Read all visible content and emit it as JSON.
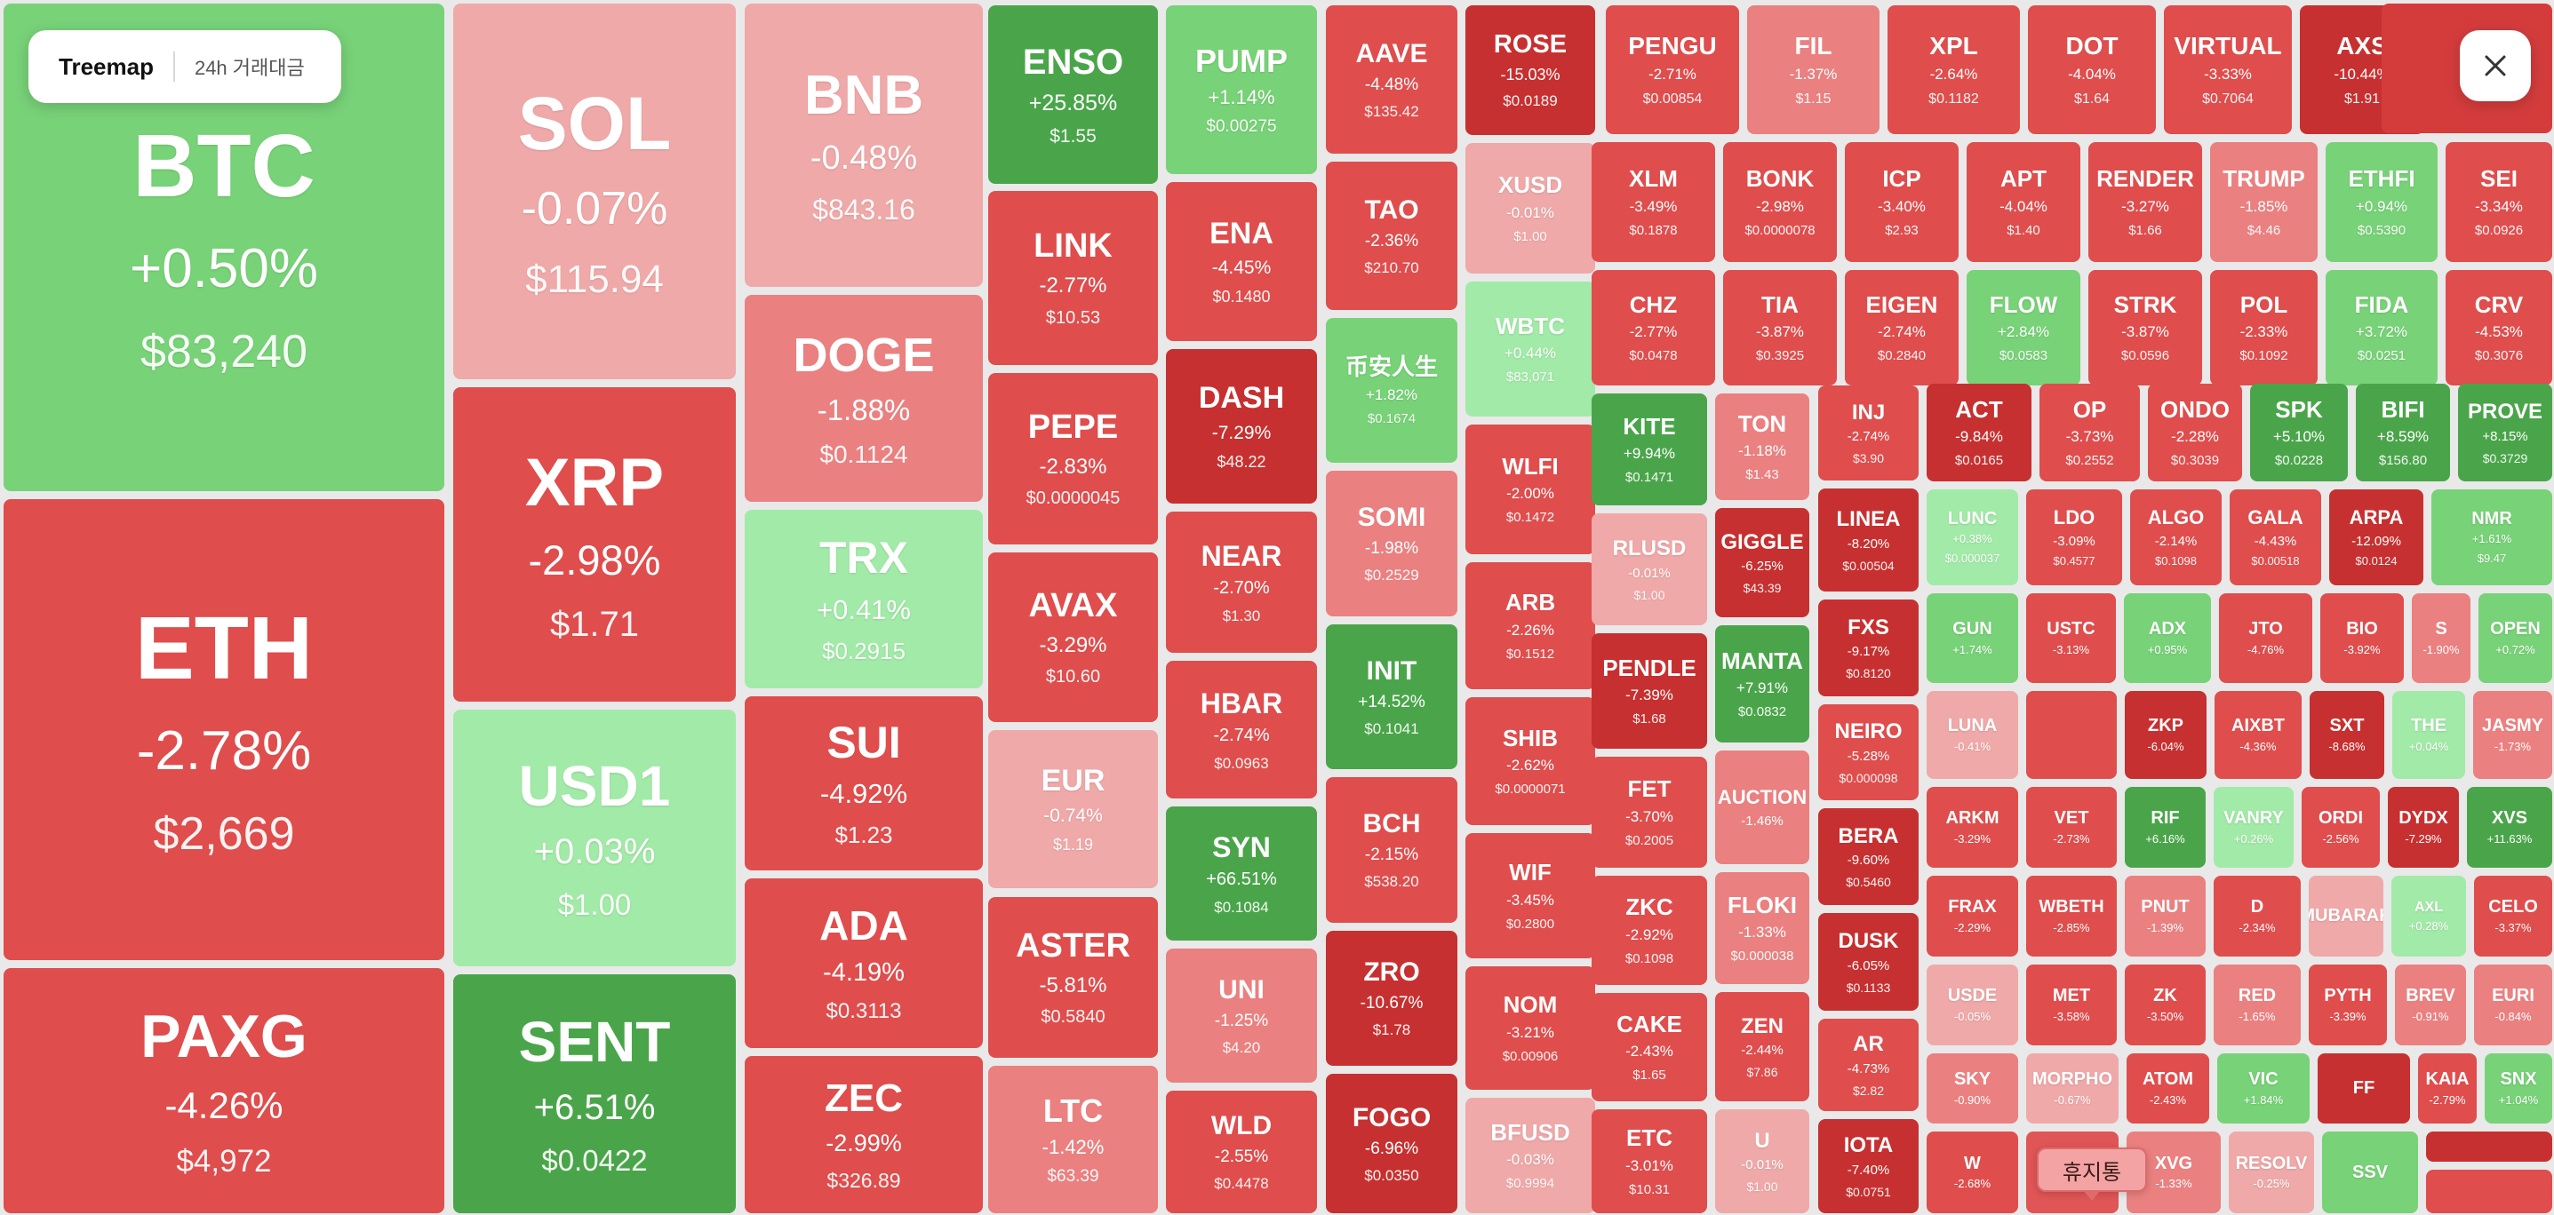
{
  "toolbar": {
    "view_label": "Treemap",
    "metric_label": "24h 거래대금"
  },
  "trash": {
    "label": "휴지통"
  },
  "colors": {
    "strong_up": "#4aa54a",
    "up": "#78d278",
    "light_up": "#a2eaa8",
    "flat_down": "#f0a9a9",
    "light_down": "#ea8080",
    "down": "#df4d4d",
    "strong_down": "#c73030"
  },
  "icons": {
    "close": "close-icon"
  },
  "tiles": [
    {
      "s": "BTC",
      "c": "+0.50%",
      "p": "$83,240"
    },
    {
      "s": "ETH",
      "c": "-2.78%",
      "p": "$2,669"
    },
    {
      "s": "PAXG",
      "c": "-4.26%",
      "p": "$4,972"
    },
    {
      "s": "SOL",
      "c": "-0.07%",
      "p": "$115.94"
    },
    {
      "s": "XRP",
      "c": "-2.98%",
      "p": "$1.71"
    },
    {
      "s": "USD1",
      "c": "+0.03%",
      "p": "$1.00"
    },
    {
      "s": "SENT",
      "c": "+6.51%",
      "p": "$0.0422"
    },
    {
      "s": "BNB",
      "c": "-0.48%",
      "p": "$843.16"
    },
    {
      "s": "DOGE",
      "c": "-1.88%",
      "p": "$0.1124"
    },
    {
      "s": "TRX",
      "c": "+0.41%",
      "p": "$0.2915"
    },
    {
      "s": "SUI",
      "c": "-4.92%",
      "p": "$1.23"
    },
    {
      "s": "ADA",
      "c": "-4.19%",
      "p": "$0.3113"
    },
    {
      "s": "ZEC",
      "c": "-2.99%",
      "p": "$326.89"
    },
    {
      "s": "ENSO",
      "c": "+25.85%",
      "p": "$1.55"
    },
    {
      "s": "LINK",
      "c": "-2.77%",
      "p": "$10.53"
    },
    {
      "s": "PEPE",
      "c": "-2.83%",
      "p": "$0.0000045"
    },
    {
      "s": "AVAX",
      "c": "-3.29%",
      "p": "$10.60"
    },
    {
      "s": "EUR",
      "c": "-0.74%",
      "p": "$1.19"
    },
    {
      "s": "ASTER",
      "c": "-5.81%",
      "p": "$0.5840"
    },
    {
      "s": "LTC",
      "c": "-1.42%",
      "p": "$63.39"
    },
    {
      "s": "PUMP",
      "c": "+1.14%",
      "p": "$0.00275"
    },
    {
      "s": "ENA",
      "c": "-4.45%",
      "p": "$0.1480"
    },
    {
      "s": "DASH",
      "c": "-7.29%",
      "p": "$48.22"
    },
    {
      "s": "NEAR",
      "c": "-2.70%",
      "p": "$1.30"
    },
    {
      "s": "HBAR",
      "c": "-2.74%",
      "p": "$0.0963"
    },
    {
      "s": "SYN",
      "c": "+66.51%",
      "p": "$0.1084"
    },
    {
      "s": "UNI",
      "c": "-1.25%",
      "p": "$4.20"
    },
    {
      "s": "WLD",
      "c": "-2.55%",
      "p": "$0.4478"
    },
    {
      "s": "AAVE",
      "c": "-4.48%",
      "p": "$135.42"
    },
    {
      "s": "TAO",
      "c": "-2.36%",
      "p": "$210.70"
    },
    {
      "s": "币安人生",
      "c": "+1.82%",
      "p": "$0.1674"
    },
    {
      "s": "SOMI",
      "c": "-1.98%",
      "p": "$0.2529"
    },
    {
      "s": "INIT",
      "c": "+14.52%",
      "p": "$0.1041"
    },
    {
      "s": "BCH",
      "c": "-2.15%",
      "p": "$538.20"
    },
    {
      "s": "ZRO",
      "c": "-10.67%",
      "p": "$1.78"
    },
    {
      "s": "FOGO",
      "c": "-6.96%",
      "p": "$0.0350"
    },
    {
      "s": "ROSE",
      "c": "-15.03%",
      "p": "$0.0189"
    },
    {
      "s": "XUSD",
      "c": "-0.01%",
      "p": "$1.00"
    },
    {
      "s": "WBTC",
      "c": "+0.44%",
      "p": "$83,071"
    },
    {
      "s": "WLFI",
      "c": "-2.00%",
      "p": "$0.1472"
    },
    {
      "s": "ARB",
      "c": "-2.26%",
      "p": "$0.1512"
    },
    {
      "s": "SHIB",
      "c": "-2.62%",
      "p": "$0.0000071"
    },
    {
      "s": "WIF",
      "c": "-3.45%",
      "p": "$0.2800"
    },
    {
      "s": "NOM",
      "c": "-3.21%",
      "p": "$0.00906"
    },
    {
      "s": "BFUSD",
      "c": "-0.03%",
      "p": "$0.9994"
    },
    {
      "s": "PENGU",
      "c": "-2.71%",
      "p": "$0.00854"
    },
    {
      "s": "FIL",
      "c": "-1.37%",
      "p": "$1.15"
    },
    {
      "s": "XPL",
      "c": "-2.64%",
      "p": "$0.1182"
    },
    {
      "s": "DOT",
      "c": "-4.04%",
      "p": "$1.64"
    },
    {
      "s": "VIRTUAL",
      "c": "-3.33%",
      "p": "$0.7064"
    },
    {
      "s": "AXS",
      "c": "-10.44%",
      "p": "$1.91"
    },
    {
      "s": "XLM",
      "c": "-3.49%",
      "p": "$0.1878"
    },
    {
      "s": "BONK",
      "c": "-2.98%",
      "p": "$0.0000078"
    },
    {
      "s": "ICP",
      "c": "-3.40%",
      "p": "$2.93"
    },
    {
      "s": "APT",
      "c": "-4.04%",
      "p": "$1.40"
    },
    {
      "s": "RENDER",
      "c": "-3.27%",
      "p": "$1.66"
    },
    {
      "s": "TRUMP",
      "c": "-1.85%",
      "p": "$4.46"
    },
    {
      "s": "ETHFI",
      "c": "+0.94%",
      "p": "$0.5390"
    },
    {
      "s": "SEI",
      "c": "-3.34%",
      "p": "$0.0926"
    },
    {
      "s": "CHZ",
      "c": "-2.77%",
      "p": "$0.0478"
    },
    {
      "s": "TIA",
      "c": "-3.87%",
      "p": "$0.3925"
    },
    {
      "s": "EIGEN",
      "c": "-2.74%",
      "p": "$0.2840"
    },
    {
      "s": "FLOW",
      "c": "+2.84%",
      "p": "$0.0583"
    },
    {
      "s": "STRK",
      "c": "-3.87%",
      "p": "$0.0596"
    },
    {
      "s": "POL",
      "c": "-2.33%",
      "p": "$0.1092"
    },
    {
      "s": "FIDA",
      "c": "+3.72%",
      "p": "$0.0251"
    },
    {
      "s": "CRV",
      "c": "-4.53%",
      "p": "$0.3076"
    },
    {
      "s": "KITE",
      "c": "+9.94%",
      "p": "$0.1471"
    },
    {
      "s": "RLUSD",
      "c": "-0.01%",
      "p": "$1.00"
    },
    {
      "s": "PENDLE",
      "c": "-7.39%",
      "p": "$1.68"
    },
    {
      "s": "FET",
      "c": "-3.70%",
      "p": "$0.2005"
    },
    {
      "s": "ZKC",
      "c": "-2.92%",
      "p": "$0.1098"
    },
    {
      "s": "CAKE",
      "c": "-2.43%",
      "p": "$1.65"
    },
    {
      "s": "ETC",
      "c": "-3.01%",
      "p": "$10.31"
    },
    {
      "s": "TON",
      "c": "-1.18%",
      "p": "$1.43"
    },
    {
      "s": "GIGGLE",
      "c": "-6.25%",
      "p": "$43.39"
    },
    {
      "s": "MANTA",
      "c": "+7.91%",
      "p": "$0.0832"
    },
    {
      "s": "AUCTION",
      "c": "-1.46%",
      "p": ""
    },
    {
      "s": "FLOKI",
      "c": "-1.33%",
      "p": "$0.000038"
    },
    {
      "s": "ZEN",
      "c": "-2.44%",
      "p": "$7.86"
    },
    {
      "s": "U",
      "c": "-0.01%",
      "p": "$1.00"
    },
    {
      "s": "INJ",
      "c": "-2.74%",
      "p": "$3.90"
    },
    {
      "s": "LINEA",
      "c": "-8.20%",
      "p": "$0.00504"
    },
    {
      "s": "FXS",
      "c": "-9.17%",
      "p": "$0.8120"
    },
    {
      "s": "NEIRO",
      "c": "-5.28%",
      "p": "$0.000098"
    },
    {
      "s": "BERA",
      "c": "-9.60%",
      "p": "$0.5460"
    },
    {
      "s": "DUSK",
      "c": "-6.05%",
      "p": "$0.1133"
    },
    {
      "s": "AR",
      "c": "-4.73%",
      "p": "$2.82"
    },
    {
      "s": "IOTA",
      "c": "-7.40%",
      "p": "$0.0751"
    },
    {
      "s": "ACT",
      "c": "-9.84%",
      "p": "$0.0165"
    },
    {
      "s": "OP",
      "c": "-3.73%",
      "p": "$0.2552"
    },
    {
      "s": "ONDO",
      "c": "-2.28%",
      "p": "$0.3039"
    },
    {
      "s": "SPK",
      "c": "+5.10%",
      "p": "$0.0228"
    },
    {
      "s": "BIFI",
      "c": "+8.59%",
      "p": "$156.80"
    },
    {
      "s": "PROVE",
      "c": "+8.15%",
      "p": "$0.3729"
    },
    {
      "s": "LUNC",
      "c": "+0.38%",
      "p": "$0.000037"
    },
    {
      "s": "LDO",
      "c": "-3.09%",
      "p": "$0.4577"
    },
    {
      "s": "ALGO",
      "c": "-2.14%",
      "p": "$0.1098"
    },
    {
      "s": "GALA",
      "c": "-4.43%",
      "p": "$0.00518"
    },
    {
      "s": "ARPA",
      "c": "-12.09%",
      "p": "$0.0124"
    },
    {
      "s": "NMR",
      "c": "+1.61%",
      "p": "$9.47"
    },
    {
      "s": "GUN",
      "c": "+1.74%",
      "p": ""
    },
    {
      "s": "USTC",
      "c": "-3.13%",
      "p": ""
    },
    {
      "s": "ADX",
      "c": "+0.95%",
      "p": ""
    },
    {
      "s": "JTO",
      "c": "-4.76%",
      "p": ""
    },
    {
      "s": "BIO",
      "c": "-3.92%",
      "p": ""
    },
    {
      "s": "S",
      "c": "-1.90%",
      "p": ""
    },
    {
      "s": "OPEN",
      "c": "+0.72%",
      "p": ""
    },
    {
      "s": "LUNA",
      "c": "-0.41%",
      "p": ""
    },
    {
      "s": "",
      "c": "",
      "p": ""
    },
    {
      "s": "ZKP",
      "c": "-6.04%",
      "p": ""
    },
    {
      "s": "AIXBT",
      "c": "-4.36%",
      "p": ""
    },
    {
      "s": "SXT",
      "c": "-8.68%",
      "p": ""
    },
    {
      "s": "THE",
      "c": "+0.04%",
      "p": ""
    },
    {
      "s": "JASMY",
      "c": "-1.73%",
      "p": ""
    },
    {
      "s": "ARKM",
      "c": "-3.29%",
      "p": ""
    },
    {
      "s": "VET",
      "c": "-2.73%",
      "p": ""
    },
    {
      "s": "RIF",
      "c": "+6.16%",
      "p": ""
    },
    {
      "s": "VANRY",
      "c": "+0.26%",
      "p": ""
    },
    {
      "s": "ORDI",
      "c": "-2.56%",
      "p": ""
    },
    {
      "s": "DYDX",
      "c": "-7.29%",
      "p": ""
    },
    {
      "s": "XVS",
      "c": "+11.63%",
      "p": ""
    },
    {
      "s": "FRAX",
      "c": "-2.29%",
      "p": ""
    },
    {
      "s": "WBETH",
      "c": "-2.85%",
      "p": ""
    },
    {
      "s": "PNUT",
      "c": "-1.39%",
      "p": ""
    },
    {
      "s": "D",
      "c": "-2.34%",
      "p": ""
    },
    {
      "s": "MUBARAK",
      "c": "",
      "p": ""
    },
    {
      "s": "AXL",
      "c": "+0.28%",
      "p": ""
    },
    {
      "s": "CELO",
      "c": "-3.37%",
      "p": ""
    },
    {
      "s": "USDE",
      "c": "-0.05%",
      "p": ""
    },
    {
      "s": "MET",
      "c": "-3.58%",
      "p": ""
    },
    {
      "s": "ZK",
      "c": "-3.50%",
      "p": ""
    },
    {
      "s": "RED",
      "c": "-1.65%",
      "p": ""
    },
    {
      "s": "PYTH",
      "c": "-3.39%",
      "p": ""
    },
    {
      "s": "BREV",
      "c": "-0.91%",
      "p": ""
    },
    {
      "s": "EURI",
      "c": "-0.84%",
      "p": ""
    },
    {
      "s": "SKY",
      "c": "-0.90%",
      "p": ""
    },
    {
      "s": "MORPHO",
      "c": "-0.67%",
      "p": ""
    },
    {
      "s": "ATOM",
      "c": "-2.43%",
      "p": ""
    },
    {
      "s": "VIC",
      "c": "+1.84%",
      "p": ""
    },
    {
      "s": "FF",
      "c": "",
      "p": ""
    },
    {
      "s": "KAIA",
      "c": "-2.79%",
      "p": ""
    },
    {
      "s": "SNX",
      "c": "+1.04%",
      "p": ""
    },
    {
      "s": "W",
      "c": "-2.68%",
      "p": ""
    },
    {
      "s": "XVG",
      "c": "-1.33%",
      "p": ""
    },
    {
      "s": "RESOLV",
      "c": "-0.25%",
      "p": ""
    },
    {
      "s": "SSV",
      "c": "",
      "p": ""
    },
    {
      "s": "",
      "c": "",
      "p": ""
    },
    {
      "s": "",
      "c": "",
      "p": ""
    },
    {
      "s": "",
      "c": "",
      "p": ""
    },
    {
      "s": "",
      "c": "",
      "p": ""
    },
    {
      "s": "",
      "c": "",
      "p": ""
    }
  ]
}
